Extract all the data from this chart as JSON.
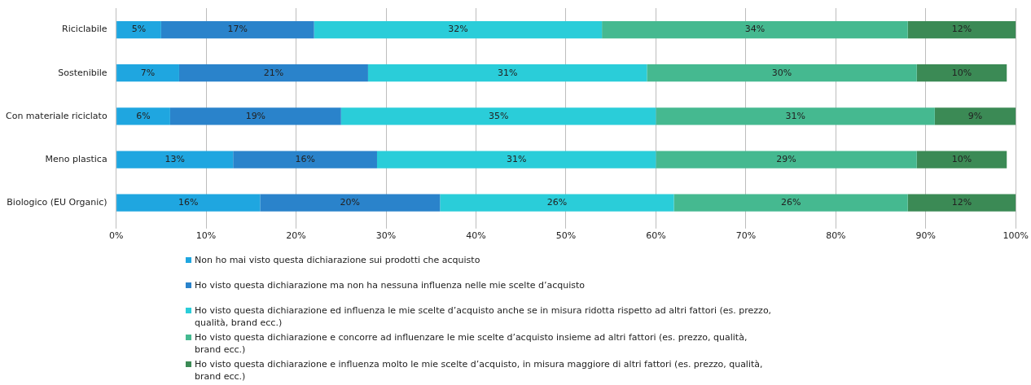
{
  "chart_data": {
    "type": "bar",
    "orientation": "horizontal",
    "stacked": true,
    "grid": "x",
    "legend": "bottom",
    "categories": [
      "Riciclabile",
      "Sostenibile",
      "Con materiale riciclato",
      "Meno plastica",
      "Biologico (EU Organic)"
    ],
    "xlim": [
      0,
      100
    ],
    "xticks": [
      {
        "value": 0,
        "label": "0%"
      },
      {
        "value": 10,
        "label": "10%"
      },
      {
        "value": 20,
        "label": "20%"
      },
      {
        "value": 30,
        "label": "30%"
      },
      {
        "value": 40,
        "label": "40%"
      },
      {
        "value": 50,
        "label": "50%"
      },
      {
        "value": 60,
        "label": "60%"
      },
      {
        "value": 70,
        "label": "70%"
      },
      {
        "value": 80,
        "label": "80%"
      },
      {
        "value": 90,
        "label": "90%"
      },
      {
        "value": 100,
        "label": "100%"
      }
    ],
    "series": [
      {
        "name": "Non ho mai visto questa dichiarazione sui prodotti che acquisto",
        "color": "#1fa6e0",
        "values": [
          5,
          7,
          6,
          13,
          16
        ],
        "value_labels": [
          "5%",
          "7%",
          "6%",
          "13%",
          "16%"
        ]
      },
      {
        "name": "Ho visto questa dichiarazione ma non ha nessuna influenza nelle mie scelte d’acquisto",
        "color": "#2a83cb",
        "values": [
          17,
          21,
          19,
          16,
          20
        ],
        "value_labels": [
          "17%",
          "21%",
          "19%",
          "16%",
          "20%"
        ]
      },
      {
        "name": "Ho visto questa dichiarazione ed influenza le mie scelte d’acquisto anche se in misura ridotta rispetto ad altri fattori (es. prezzo, qualità, brand ecc.)",
        "color": "#2acdd9",
        "values": [
          32,
          31,
          35,
          31,
          26
        ],
        "value_labels": [
          "32%",
          "31%",
          "35%",
          "31%",
          "26%"
        ]
      },
      {
        "name": "Ho visto questa dichiarazione e concorre ad influenzare le mie scelte d’acquisto insieme ad altri fattori (es. prezzo, qualità, brand ecc.)",
        "color": "#45b990",
        "values": [
          34,
          30,
          31,
          29,
          26
        ],
        "value_labels": [
          "34%",
          "30%",
          "31%",
          "29%",
          "26%"
        ]
      },
      {
        "name": "Ho visto questa dichiarazione e influenza molto le mie scelte d’acquisto, in misura maggiore di altri fattori (es. prezzo, qualità, brand ecc.)",
        "color": "#3b8a55",
        "values": [
          12,
          10,
          9,
          10,
          12
        ],
        "value_labels": [
          "12%",
          "10%",
          "9%",
          "10%",
          "12%"
        ]
      }
    ]
  }
}
